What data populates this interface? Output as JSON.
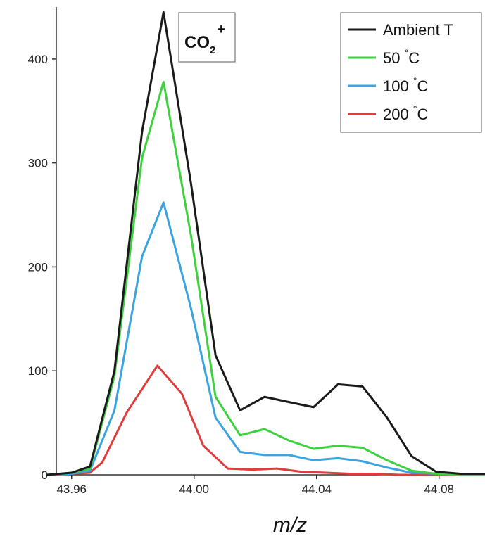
{
  "chart_data": {
    "type": "line",
    "xlabel": "m/z",
    "ylabel": "",
    "annotation": {
      "base": "CO",
      "sub": "2",
      "sup": "+"
    },
    "xlim": [
      43.955,
      44.095
    ],
    "ylim": [
      0,
      450
    ],
    "xticks": [
      "43.96",
      "44.00",
      "44.04",
      "44.08"
    ],
    "yticks": [
      "0",
      "100",
      "200",
      "300",
      "400"
    ],
    "grid": false,
    "legend_position": "top-right",
    "series": [
      {
        "name": "Ambient T",
        "unit": "",
        "color": "#1a1a1a",
        "points": [
          [
            43.952,
            0
          ],
          [
            43.96,
            2
          ],
          [
            43.966,
            8
          ],
          [
            43.974,
            100
          ],
          [
            43.983,
            330
          ],
          [
            43.99,
            445
          ],
          [
            43.999,
            280
          ],
          [
            44.007,
            115
          ],
          [
            44.015,
            62
          ],
          [
            44.023,
            75
          ],
          [
            44.031,
            70
          ],
          [
            44.039,
            65
          ],
          [
            44.047,
            87
          ],
          [
            44.055,
            85
          ],
          [
            44.063,
            55
          ],
          [
            44.071,
            18
          ],
          [
            44.079,
            3
          ],
          [
            44.087,
            1
          ],
          [
            44.095,
            1
          ]
        ]
      },
      {
        "name": "50 ",
        "unit": "°C",
        "color": "#3dd13d",
        "points": [
          [
            43.952,
            0
          ],
          [
            43.96,
            2
          ],
          [
            43.966,
            6
          ],
          [
            43.974,
            95
          ],
          [
            43.983,
            305
          ],
          [
            43.99,
            378
          ],
          [
            43.999,
            230
          ],
          [
            44.007,
            75
          ],
          [
            44.015,
            38
          ],
          [
            44.023,
            44
          ],
          [
            44.031,
            33
          ],
          [
            44.039,
            25
          ],
          [
            44.047,
            28
          ],
          [
            44.055,
            26
          ],
          [
            44.063,
            14
          ],
          [
            44.071,
            4
          ],
          [
            44.079,
            1
          ],
          [
            44.087,
            0
          ],
          [
            44.095,
            0
          ]
        ]
      },
      {
        "name": "100 ",
        "unit": "°C",
        "color": "#3ba3e0",
        "points": [
          [
            43.952,
            0
          ],
          [
            43.96,
            1
          ],
          [
            43.966,
            4
          ],
          [
            43.974,
            62
          ],
          [
            43.983,
            210
          ],
          [
            43.99,
            262
          ],
          [
            43.999,
            160
          ],
          [
            44.007,
            55
          ],
          [
            44.015,
            22
          ],
          [
            44.023,
            19
          ],
          [
            44.031,
            19
          ],
          [
            44.039,
            14
          ],
          [
            44.047,
            16
          ],
          [
            44.055,
            13
          ],
          [
            44.063,
            7
          ],
          [
            44.071,
            2
          ],
          [
            44.079,
            1
          ],
          [
            44.087,
            0
          ],
          [
            44.095,
            0
          ]
        ]
      },
      {
        "name": "200 ",
        "unit": "°C",
        "color": "#e03c3c",
        "points": [
          [
            43.952,
            0
          ],
          [
            43.96,
            1
          ],
          [
            43.966,
            2
          ],
          [
            43.97,
            12
          ],
          [
            43.978,
            60
          ],
          [
            43.988,
            105
          ],
          [
            43.996,
            78
          ],
          [
            44.003,
            28
          ],
          [
            44.011,
            6
          ],
          [
            44.019,
            5
          ],
          [
            44.027,
            6
          ],
          [
            44.035,
            3
          ],
          [
            44.043,
            2
          ],
          [
            44.051,
            1
          ],
          [
            44.059,
            1
          ],
          [
            44.067,
            0
          ],
          [
            44.079,
            0
          ],
          [
            44.095,
            0
          ]
        ]
      }
    ]
  }
}
